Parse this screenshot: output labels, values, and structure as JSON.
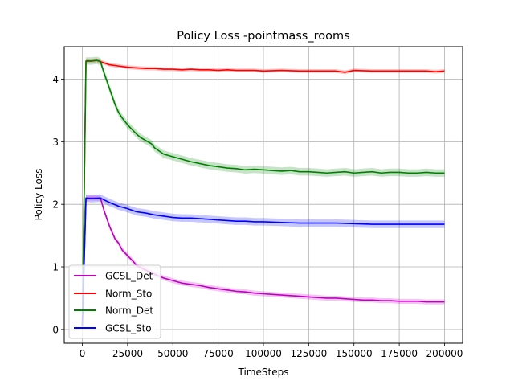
{
  "chart_data": {
    "type": "line",
    "title": "Policy Loss -pointmass_rooms",
    "xlabel": "TimeSteps",
    "ylabel": "Policy Loss",
    "xlim": [
      -10000,
      210000
    ],
    "ylim": [
      -0.22,
      4.52
    ],
    "xticks": [
      0,
      25000,
      50000,
      75000,
      100000,
      125000,
      150000,
      175000,
      200000
    ],
    "yticks": [
      0,
      1,
      2,
      3,
      4
    ],
    "grid": true,
    "legend_position": "lower-left",
    "series": [
      {
        "name": "GCSL_Det",
        "color": "#bf00bf",
        "band": 0.04,
        "x": [
          0,
          2000,
          5000,
          10000,
          12000,
          15000,
          18000,
          20000,
          22000,
          25000,
          28000,
          30000,
          35000,
          40000,
          45000,
          50000,
          55000,
          60000,
          65000,
          70000,
          75000,
          80000,
          85000,
          90000,
          95000,
          100000,
          105000,
          110000,
          115000,
          120000,
          125000,
          130000,
          135000,
          140000,
          145000,
          150000,
          155000,
          160000,
          165000,
          170000,
          175000,
          180000,
          185000,
          190000,
          195000,
          200000
        ],
        "y": [
          0.05,
          2.1,
          2.1,
          2.1,
          1.9,
          1.65,
          1.45,
          1.38,
          1.27,
          1.18,
          1.09,
          1.02,
          0.95,
          0.88,
          0.82,
          0.78,
          0.74,
          0.72,
          0.7,
          0.67,
          0.65,
          0.63,
          0.61,
          0.6,
          0.58,
          0.57,
          0.56,
          0.55,
          0.54,
          0.53,
          0.52,
          0.51,
          0.5,
          0.5,
          0.49,
          0.48,
          0.47,
          0.47,
          0.46,
          0.46,
          0.45,
          0.45,
          0.45,
          0.44,
          0.44,
          0.44
        ]
      },
      {
        "name": "Norm_Sto",
        "color": "#ff0000",
        "band": 0.03,
        "x": [
          0,
          2000,
          5000,
          8000,
          10000,
          15000,
          20000,
          25000,
          30000,
          35000,
          40000,
          45000,
          50000,
          55000,
          60000,
          65000,
          70000,
          75000,
          80000,
          85000,
          90000,
          95000,
          100000,
          110000,
          120000,
          130000,
          140000,
          145000,
          150000,
          160000,
          170000,
          180000,
          190000,
          195000,
          200000
        ],
        "y": [
          0.05,
          4.29,
          4.29,
          4.3,
          4.28,
          4.23,
          4.21,
          4.19,
          4.18,
          4.17,
          4.17,
          4.16,
          4.16,
          4.15,
          4.16,
          4.15,
          4.15,
          4.14,
          4.15,
          4.14,
          4.14,
          4.14,
          4.13,
          4.14,
          4.13,
          4.13,
          4.13,
          4.11,
          4.14,
          4.13,
          4.13,
          4.13,
          4.13,
          4.12,
          4.13
        ]
      },
      {
        "name": "Norm_Det",
        "color": "#008000",
        "band": 0.06,
        "x": [
          0,
          2000,
          5000,
          8000,
          10000,
          12000,
          15000,
          18000,
          20000,
          22000,
          25000,
          28000,
          30000,
          32000,
          35000,
          38000,
          40000,
          45000,
          50000,
          55000,
          60000,
          65000,
          70000,
          75000,
          80000,
          85000,
          90000,
          95000,
          100000,
          105000,
          110000,
          115000,
          120000,
          125000,
          130000,
          135000,
          140000,
          145000,
          150000,
          155000,
          160000,
          165000,
          170000,
          175000,
          180000,
          185000,
          190000,
          195000,
          200000
        ],
        "y": [
          0.05,
          4.29,
          4.29,
          4.3,
          4.28,
          4.1,
          3.85,
          3.6,
          3.47,
          3.38,
          3.27,
          3.18,
          3.12,
          3.07,
          3.02,
          2.97,
          2.9,
          2.8,
          2.76,
          2.72,
          2.68,
          2.65,
          2.62,
          2.6,
          2.58,
          2.57,
          2.55,
          2.56,
          2.55,
          2.54,
          2.53,
          2.54,
          2.52,
          2.52,
          2.51,
          2.5,
          2.51,
          2.52,
          2.5,
          2.51,
          2.52,
          2.5,
          2.51,
          2.51,
          2.5,
          2.5,
          2.51,
          2.5,
          2.5
        ]
      },
      {
        "name": "GCSL_Sto",
        "color": "#0000ff",
        "band": 0.06,
        "x": [
          0,
          2000,
          5000,
          10000,
          12000,
          15000,
          20000,
          25000,
          30000,
          35000,
          40000,
          45000,
          50000,
          55000,
          60000,
          65000,
          70000,
          75000,
          80000,
          85000,
          90000,
          95000,
          100000,
          110000,
          120000,
          130000,
          140000,
          150000,
          160000,
          170000,
          180000,
          190000,
          200000
        ],
        "y": [
          0.05,
          2.1,
          2.09,
          2.1,
          2.07,
          2.03,
          1.97,
          1.93,
          1.88,
          1.86,
          1.83,
          1.81,
          1.79,
          1.78,
          1.78,
          1.77,
          1.76,
          1.75,
          1.74,
          1.73,
          1.73,
          1.72,
          1.72,
          1.71,
          1.7,
          1.7,
          1.7,
          1.69,
          1.68,
          1.68,
          1.68,
          1.68,
          1.68
        ]
      }
    ]
  }
}
